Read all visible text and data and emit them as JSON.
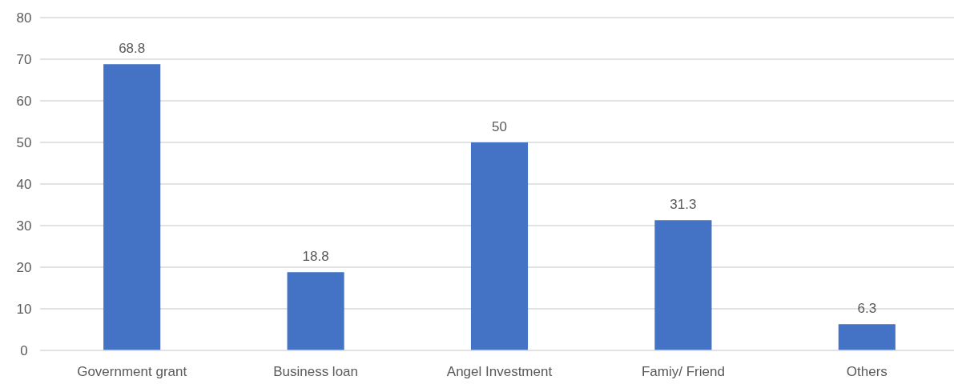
{
  "chart_data": {
    "type": "bar",
    "categories": [
      "Government grant",
      "Business loan",
      "Angel Investment",
      "Famiy/ Friend",
      "Others"
    ],
    "values": [
      68.8,
      18.8,
      50,
      31.3,
      6.3
    ],
    "color": "#4472c4",
    "ylim": [
      0,
      80
    ],
    "yticks": [
      0,
      10,
      20,
      30,
      40,
      50,
      60,
      70,
      80
    ],
    "grid": "y",
    "data_labels": true
  }
}
